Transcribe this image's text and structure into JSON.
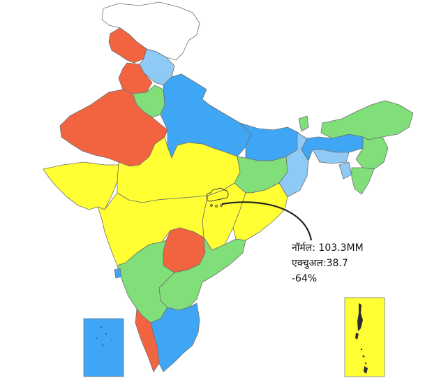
{
  "map": {
    "colors": {
      "red": "#f26440",
      "yellow": "#ffff33",
      "green": "#80df79",
      "blue": "#3fa6f5",
      "light_blue": "#8fcaf7",
      "none": "#ffffff"
    },
    "callout": {
      "normal": "नॉर्मल: 103.3MM",
      "actual": "एक्चुअल:38.7",
      "departure": "-64%"
    }
  }
}
